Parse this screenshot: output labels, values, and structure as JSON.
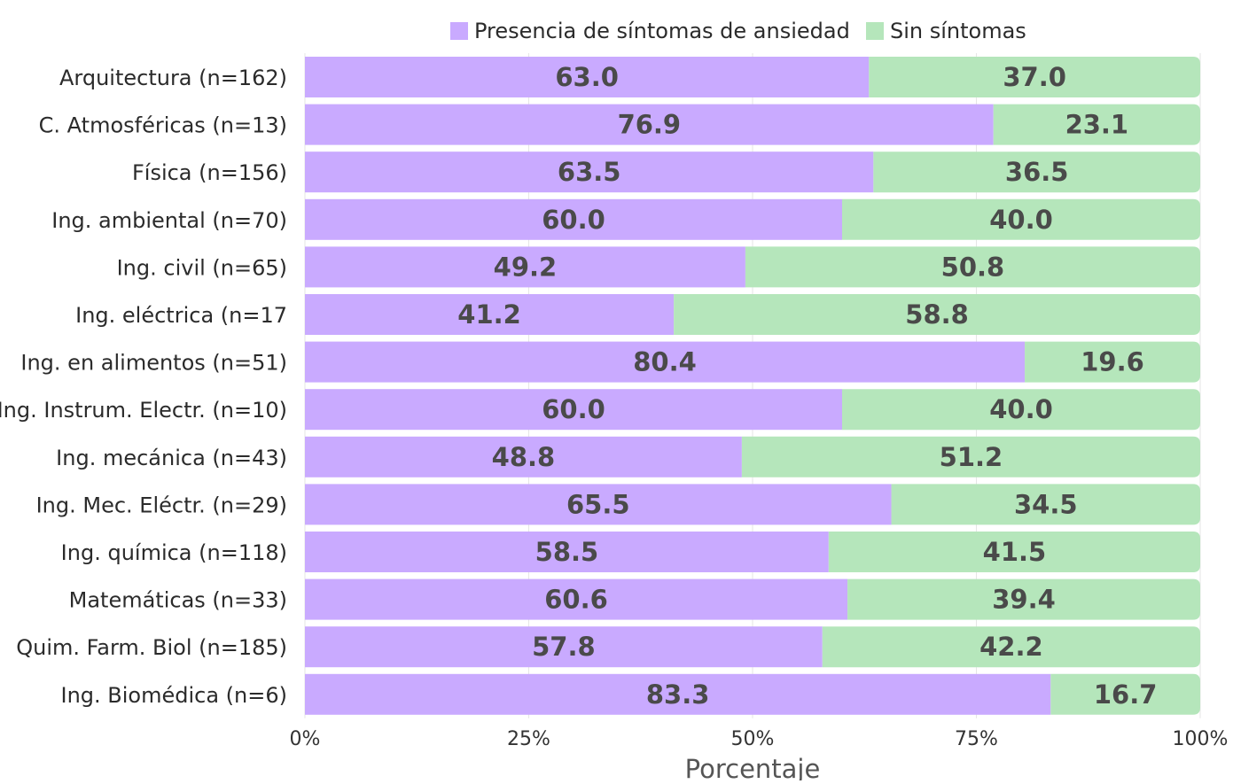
{
  "chart_data": {
    "type": "bar",
    "orientation": "horizontal",
    "stacked": true,
    "categories": [
      "Arquitectura (n=162)",
      "C. Atmosféricas (n=13)",
      "Física (n=156)",
      "Ing. ambiental (n=70)",
      "Ing. civil (n=65)",
      "Ing. eléctrica (n=17",
      "Ing. en alimentos (n=51)",
      "Ing. Instrum. Electr. (n=10)",
      "Ing. mecánica (n=43)",
      "Ing. Mec. Eléctr. (n=29)",
      "Ing. química (n=118)",
      "Matemáticas (n=33)",
      "Quim. Farm. Biol (n=185)",
      "Ing. Biomédica (n=6)"
    ],
    "series": [
      {
        "name": "Presencia de síntomas de ansiedad",
        "color": "#c9aaff",
        "values": [
          63.0,
          76.9,
          63.5,
          60.0,
          49.2,
          41.2,
          80.4,
          60.0,
          48.8,
          65.5,
          58.5,
          60.6,
          57.8,
          83.3
        ],
        "labels": [
          "63.0",
          "76.9",
          "63.5",
          "60.0",
          "49.2",
          "41.2",
          "80.4",
          "60.0",
          "48.8",
          "65.5",
          "58.5",
          "60.6",
          "57.8",
          "83.3"
        ]
      },
      {
        "name": "Sin síntomas",
        "color": "#b5e6bb",
        "values": [
          37.0,
          23.1,
          36.5,
          40.0,
          50.8,
          58.8,
          19.6,
          40.0,
          51.2,
          34.5,
          41.5,
          39.4,
          42.2,
          16.7
        ],
        "labels": [
          "37.0",
          "23.1",
          "36.5",
          "40.0",
          "50.8",
          "58.8",
          "19.6",
          "40.0",
          "51.2",
          "34.5",
          "41.5",
          "39.4",
          "42.2",
          "16.7"
        ]
      }
    ],
    "xlabel": "Porcentaje",
    "ylabel": "",
    "xlim": [
      0,
      100
    ],
    "xticks": [
      "0%",
      "25%",
      "50%",
      "75%",
      "100%"
    ],
    "grid": true,
    "legend_position": "top"
  }
}
